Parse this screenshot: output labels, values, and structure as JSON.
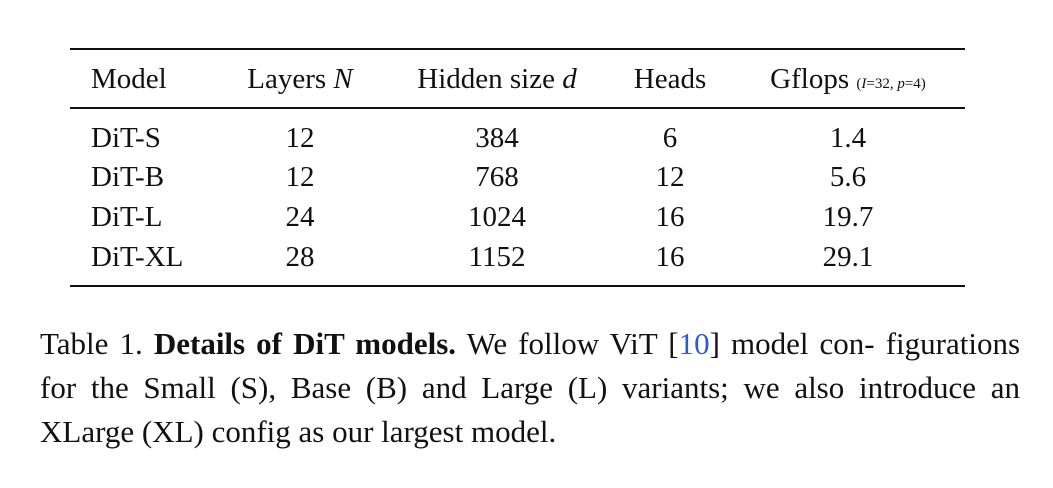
{
  "table": {
    "headers": {
      "model": "Model",
      "layers": "Layers",
      "layers_sym": "N",
      "hidden": "Hidden size",
      "hidden_sym": "d",
      "heads": "Heads",
      "gflops": "Gflops",
      "gflops_note_open": "(",
      "gflops_note_I": "I",
      "gflops_note_mid": "=32, ",
      "gflops_note_p": "p",
      "gflops_note_close": "=4)"
    },
    "rows": [
      {
        "model": "DiT-S",
        "layers": "12",
        "hidden": "384",
        "heads": "6",
        "gflops": "1.4"
      },
      {
        "model": "DiT-B",
        "layers": "12",
        "hidden": "768",
        "heads": "12",
        "gflops": "5.6"
      },
      {
        "model": "DiT-L",
        "layers": "24",
        "hidden": "1024",
        "heads": "16",
        "gflops": "19.7"
      },
      {
        "model": "DiT-XL",
        "layers": "28",
        "hidden": "1152",
        "heads": "16",
        "gflops": "29.1"
      }
    ]
  },
  "caption": {
    "label": "Table 1.",
    "title": "Details of DiT models.",
    "text_a": "We follow ViT [",
    "ref": "10",
    "text_b": "] model con- figurations for the Small (S), Base (B) and Large (L) variants; we also introduce an XLarge (XL) config as our largest model."
  }
}
